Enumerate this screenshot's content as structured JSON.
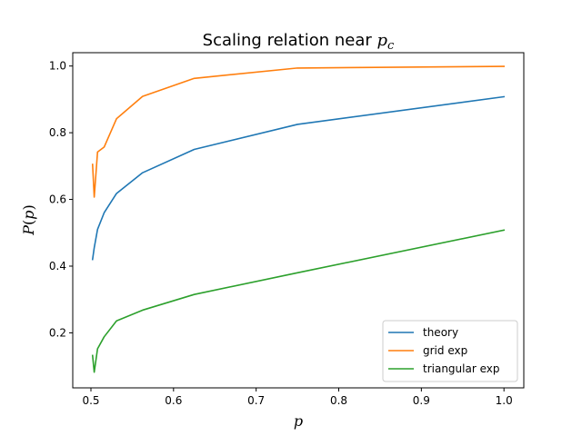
{
  "chart_data": {
    "type": "line",
    "title": "Scaling relation near ",
    "title_math": "p",
    "title_math_sub": "c",
    "xlabel": "p",
    "ylabel_var": "P",
    "ylabel_arg": "p",
    "xlim": [
      0.478,
      1.024
    ],
    "ylim": [
      0.035,
      1.04
    ],
    "x_ticks": [
      0.5,
      0.6,
      0.7,
      0.8,
      0.9,
      1.0
    ],
    "x_tick_labels": [
      "0.5",
      "0.6",
      "0.7",
      "0.8",
      "0.9",
      "1.0"
    ],
    "y_ticks": [
      0.2,
      0.4,
      0.6,
      0.8,
      1.0
    ],
    "y_tick_labels": [
      "0.2",
      "0.4",
      "0.6",
      "0.8",
      "1.0"
    ],
    "grid": false,
    "legend_position": "bottom-right",
    "series": [
      {
        "name": "theory",
        "color": "#1f77b4",
        "x": [
          0.502,
          0.504,
          0.508,
          0.516,
          0.531,
          0.5625,
          0.625,
          0.75,
          1.0
        ],
        "y": [
          0.42,
          0.455,
          0.51,
          0.56,
          0.618,
          0.68,
          0.75,
          0.825,
          0.908
        ]
      },
      {
        "name": "grid exp",
        "color": "#ff7f0e",
        "x": [
          0.502,
          0.504,
          0.508,
          0.516,
          0.531,
          0.5625,
          0.625,
          0.75,
          1.0
        ],
        "y": [
          0.705,
          0.607,
          0.742,
          0.757,
          0.842,
          0.909,
          0.963,
          0.994,
          0.999
        ]
      },
      {
        "name": "triangular exp",
        "color": "#2ca02c",
        "x": [
          0.502,
          0.504,
          0.508,
          0.516,
          0.531,
          0.5625,
          0.625,
          0.75,
          1.0
        ],
        "y": [
          0.132,
          0.082,
          0.152,
          0.188,
          0.236,
          0.268,
          0.315,
          0.38,
          0.508
        ]
      }
    ]
  }
}
